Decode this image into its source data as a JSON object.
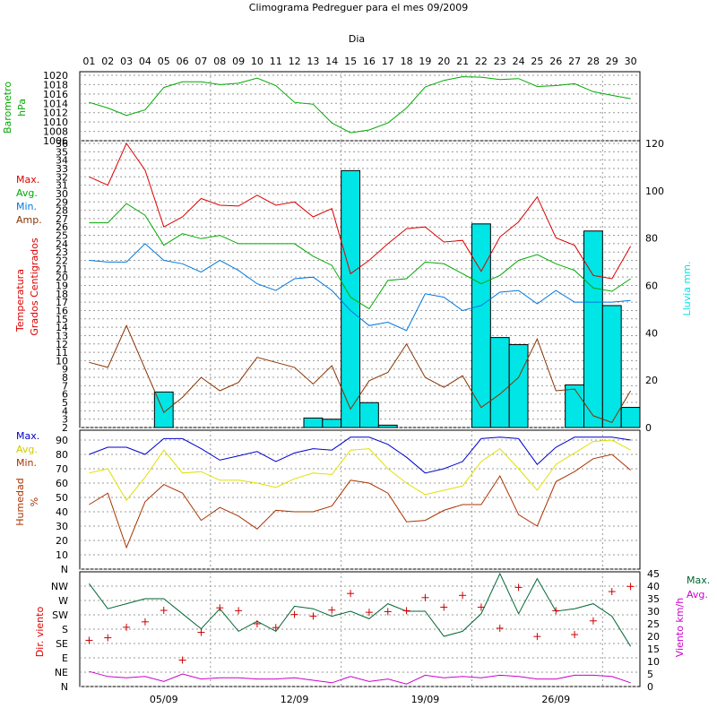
{
  "chart_data": {
    "type": "climogram",
    "title": "Climograma Pedreguer para el mes 09/2009",
    "x_axis_label": "Dia",
    "days": [
      "01",
      "02",
      "03",
      "04",
      "05",
      "06",
      "07",
      "08",
      "09",
      "10",
      "11",
      "12",
      "13",
      "14",
      "15",
      "16",
      "17",
      "18",
      "19",
      "20",
      "21",
      "22",
      "23",
      "24",
      "25",
      "26",
      "27",
      "28",
      "29",
      "30"
    ],
    "week_labels": [
      {
        "day": 5,
        "label": "05/09"
      },
      {
        "day": 12,
        "label": "12/09"
      },
      {
        "day": 19,
        "label": "19/09"
      },
      {
        "day": 26,
        "label": "26/09"
      }
    ],
    "colors": {
      "max": "#dd0000",
      "avg": "#00aa00",
      "min": "#0077dd",
      "amp": "#883300",
      "rain": "#00e5e5",
      "baro": "#00aa00",
      "hum_max": "#0000cc",
      "hum_avg": "#e0e000",
      "hum_min": "#aa3300",
      "wind_max": "#006633",
      "wind_avg": "#cc00cc",
      "wind_dir": "#cc0000",
      "grid": "#999999"
    },
    "barometer": {
      "ylabel_line1": "Barometro",
      "ylabel_line2": "hPa",
      "ylim": [
        1006,
        1020
      ],
      "ticks": [
        "1006",
        "1008",
        "1010",
        "1012",
        "1014",
        "1016",
        "1018",
        "1020"
      ],
      "values": [
        1014.2,
        1013.0,
        1011.4,
        1012.6,
        1017.4,
        1018.6,
        1018.6,
        1018.0,
        1018.3,
        1019.4,
        1017.8,
        1014.2,
        1013.8,
        1009.8,
        1007.7,
        1008.3,
        1009.8,
        1013.0,
        1017.5,
        1018.9,
        1019.7,
        1019.6,
        1019.1,
        1019.3,
        1017.6,
        1017.8,
        1018.2,
        1016.5,
        1015.7,
        1015.0
      ]
    },
    "temperature": {
      "ylabel_line1": "Temperatura",
      "ylabel_line2": "Grados Centigrados",
      "legend": [
        "Max.",
        "Avg.",
        "Min.",
        "Amp."
      ],
      "ylim": [
        2,
        36
      ],
      "ticks": [
        "2",
        "3",
        "4",
        "5",
        "6",
        "7",
        "8",
        "9",
        "10",
        "11",
        "12",
        "13",
        "14",
        "15",
        "16",
        "17",
        "18",
        "19",
        "20",
        "21",
        "22",
        "23",
        "24",
        "25",
        "26",
        "27",
        "28",
        "29",
        "30",
        "31",
        "32",
        "33",
        "34",
        "35",
        "36"
      ],
      "max": [
        32.0,
        31.0,
        36.0,
        32.8,
        26.0,
        27.2,
        29.4,
        28.6,
        28.5,
        29.8,
        28.6,
        29.0,
        27.2,
        28.2,
        20.4,
        22.0,
        24.0,
        25.8,
        26.0,
        24.2,
        24.4,
        20.7,
        24.8,
        26.6,
        29.6,
        24.7,
        23.8,
        20.2,
        19.8,
        23.7
      ],
      "avg": [
        26.5,
        26.5,
        28.8,
        27.4,
        23.8,
        25.2,
        24.6,
        25.0,
        24.0,
        24.0,
        24.0,
        24.0,
        22.5,
        21.4,
        17.6,
        16.2,
        19.6,
        19.8,
        21.8,
        21.6,
        20.4,
        19.2,
        20.2,
        22.0,
        22.7,
        21.6,
        20.8,
        18.7,
        18.3,
        19.8
      ],
      "min": [
        22.0,
        21.8,
        21.8,
        24.0,
        22.0,
        21.6,
        20.6,
        22.0,
        20.8,
        19.2,
        18.4,
        19.8,
        20.0,
        18.4,
        16.0,
        14.2,
        14.6,
        13.6,
        18.0,
        17.6,
        16.0,
        16.6,
        18.2,
        18.4,
        16.8,
        18.4,
        17.0,
        17.0,
        17.0,
        17.2
      ],
      "amp": [
        9.8,
        9.2,
        14.2,
        9.0,
        3.8,
        5.6,
        8.0,
        6.4,
        7.4,
        10.4,
        9.8,
        9.2,
        7.2,
        9.4,
        4.2,
        7.6,
        8.6,
        12.0,
        8.0,
        6.8,
        8.2,
        4.4,
        6.0,
        8.0,
        12.6,
        6.4,
        6.6,
        3.4,
        2.6,
        6.4
      ]
    },
    "rain": {
      "ylabel": "Lluvia mm.",
      "ylim": [
        0,
        120
      ],
      "ticks": [
        "0",
        "20",
        "40",
        "60",
        "80",
        "100",
        "120"
      ],
      "values": [
        0,
        0,
        0,
        0,
        15,
        0,
        0,
        0,
        0,
        0,
        0,
        0,
        4,
        3.5,
        108.5,
        10.5,
        1,
        0,
        0,
        0,
        0,
        86,
        38,
        35,
        0,
        0,
        18,
        83,
        51.5,
        8.5
      ]
    },
    "humidity": {
      "ylabel_line1": "Humedad",
      "ylabel_line2": "%",
      "legend": [
        "Max.",
        "Avg.",
        "Min."
      ],
      "ylim": [
        0,
        95
      ],
      "ticks": [
        "N",
        "10",
        "20",
        "30",
        "40",
        "50",
        "60",
        "70",
        "80",
        "90"
      ],
      "max": [
        80,
        85,
        85,
        80,
        91,
        91,
        84,
        76,
        79,
        82,
        75,
        81,
        84,
        83,
        92,
        92,
        87,
        78,
        67,
        70,
        75,
        91,
        92,
        91,
        73,
        85,
        92,
        92,
        92,
        90
      ],
      "avg": [
        67,
        70,
        48,
        64,
        83,
        67,
        68,
        62,
        62,
        60,
        57,
        63,
        67,
        66,
        83,
        84,
        70,
        60,
        52,
        55,
        58,
        75,
        84,
        70,
        55,
        73,
        81,
        89,
        90,
        83
      ],
      "min": [
        45,
        53,
        15,
        47,
        59,
        53,
        34,
        43,
        37,
        28,
        41,
        40,
        40,
        44,
        62,
        60,
        53,
        33,
        34,
        41,
        45,
        45,
        65,
        38,
        30,
        61,
        68,
        77,
        80,
        69
      ]
    },
    "wind": {
      "ylabel_dir": "Dir. viento",
      "ylabel_speed": "Viento km/h",
      "legend": [
        "Max.",
        "Avg."
      ],
      "dir_ticks": [
        "N",
        "NE",
        "E",
        "SE",
        "S",
        "SW",
        "W",
        "NW"
      ],
      "speed_ylim": [
        0,
        45
      ],
      "speed_ticks": [
        "0",
        "5",
        "10",
        "15",
        "20",
        "25",
        "30",
        "35",
        "40",
        "45"
      ],
      "max": [
        41,
        31,
        33,
        35,
        35,
        29,
        23,
        31,
        22,
        26,
        22,
        32,
        31,
        28,
        30,
        27,
        33,
        30,
        30,
        20,
        22,
        29,
        45,
        29,
        43,
        30,
        31,
        33,
        28,
        16
      ],
      "avg": [
        6,
        4,
        3.5,
        4,
        2,
        5,
        3,
        3.5,
        3.5,
        3,
        3,
        3.5,
        2.5,
        1.5,
        4,
        2,
        3,
        1,
        4.5,
        3.5,
        4,
        3.5,
        4.5,
        4,
        3,
        3,
        4.5,
        4.5,
        4,
        1.5
      ],
      "direction_deg": [
        145,
        153,
        186,
        203,
        239,
        83,
        170,
        247,
        238,
        197,
        185,
        226,
        221,
        240,
        292,
        233,
        235,
        238,
        279,
        249,
        286,
        249,
        183,
        311,
        157,
        238,
        163,
        206,
        298,
        314
      ]
    }
  }
}
